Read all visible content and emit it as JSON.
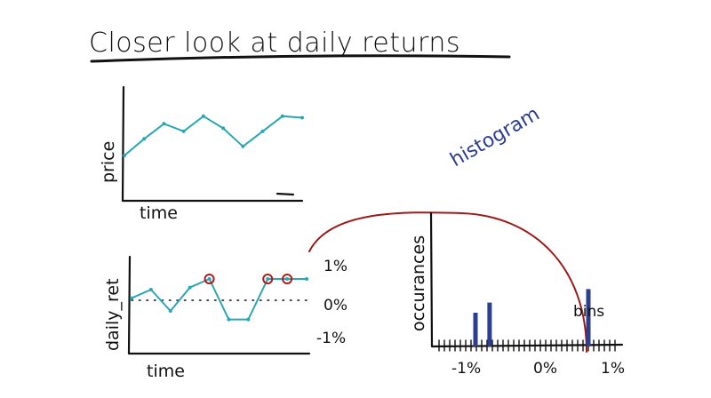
{
  "title": "Closer look at daily returns",
  "colors": {
    "ink": "#111111",
    "teal": "#2aa7b5",
    "marker_red": "#b01a1a",
    "arrow_red": "#9b1a1a",
    "bar_blue": "#2c3f8f",
    "note_blue": "#2c3f8f"
  },
  "price_plot": {
    "ylabel": "price",
    "xlabel": "time"
  },
  "returns_plot": {
    "ylabel": "daily_ret",
    "xlabel": "time",
    "ticks": {
      "top": "1%",
      "mid": "0%",
      "bottom": "-1%"
    }
  },
  "histogram": {
    "note": "histogram",
    "ylabel": "occurances",
    "bins_label": "bins",
    "ticks": {
      "left": "-1%",
      "mid": "0%",
      "right": "1%"
    }
  },
  "chart_data": [
    {
      "type": "line",
      "ylabel": "price",
      "xlabel": "time",
      "x": [
        1,
        2,
        3,
        4,
        5,
        6,
        7,
        8,
        9,
        10
      ],
      "y": [
        3.0,
        4.1,
        5.1,
        4.6,
        5.6,
        4.8,
        3.6,
        4.6,
        5.6,
        5.5
      ]
    },
    {
      "type": "line",
      "ylabel": "daily_ret",
      "xlabel": "time",
      "x": [
        1,
        2,
        3,
        4,
        5,
        6,
        7,
        8,
        9,
        10
      ],
      "y": [
        0.1,
        0.5,
        -0.5,
        0.6,
        1.0,
        -0.9,
        -0.9,
        1.0,
        1.0,
        1.0
      ],
      "ytick_labels": [
        "1%",
        "0%",
        "-1%"
      ],
      "highlighted_points": [
        5,
        8,
        9
      ]
    },
    {
      "type": "bar",
      "xlabel": "",
      "ylabel": "occurances",
      "xtick_labels": [
        "-1%",
        "0%",
        "1%"
      ],
      "x": [
        -1.0,
        -0.75,
        1.0
      ],
      "values": [
        1.0,
        1.3,
        1.7
      ]
    }
  ]
}
